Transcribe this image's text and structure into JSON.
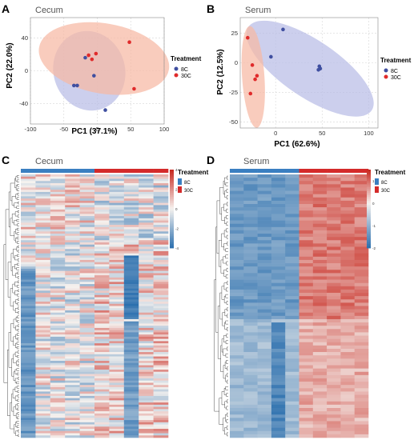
{
  "panels": {
    "A": {
      "letter": "A",
      "title": "Cecum"
    },
    "B": {
      "letter": "B",
      "title": "Serum"
    },
    "C": {
      "letter": "C",
      "title": "Cecum"
    },
    "D": {
      "letter": "D",
      "title": "Serum"
    }
  },
  "legend": {
    "title": "Treatment",
    "items": [
      "8C",
      "30C"
    ]
  },
  "colors": {
    "group_8C": "#3f4fa0",
    "group_30C": "#e02b2b",
    "ellipse_8C": "#b8bde6",
    "ellipse_30C": "#f6b9a3",
    "heat_low": "#2b6fae",
    "heat_mid": "#f5f2ef",
    "heat_high": "#c7271e",
    "bar_8C": "#3a7fc1",
    "bar_30C": "#d42a2a"
  },
  "chart_data": [
    {
      "panel": "A",
      "type": "scatter",
      "xlabel": "PC1 (37.1%)",
      "ylabel": "PC2 (22.0%)",
      "xlim": [
        -100,
        100
      ],
      "ylim": [
        -65,
        65
      ],
      "xticks": [
        -100,
        -50,
        0,
        50,
        100
      ],
      "yticks": [
        -40,
        0,
        40
      ],
      "grid": true,
      "legend_position": "right",
      "series": [
        {
          "name": "8C",
          "points": [
            [
              -18,
              16
            ],
            [
              -35,
              -18
            ],
            [
              -30,
              -18
            ],
            [
              -5,
              -6
            ],
            [
              12,
              -48
            ]
          ]
        },
        {
          "name": "30C",
          "points": [
            [
              -13,
              19
            ],
            [
              -8,
              14
            ],
            [
              -2,
              21
            ],
            [
              48,
              35
            ],
            [
              55,
              -22
            ]
          ]
        }
      ],
      "ellipses": [
        {
          "group": "8C",
          "cx": -12,
          "cy": 0,
          "rx": 50,
          "ry": 52,
          "angle": 110
        },
        {
          "group": "30C",
          "cx": 10,
          "cy": 15,
          "rx": 98,
          "ry": 43,
          "angle": -8
        }
      ]
    },
    {
      "panel": "B",
      "type": "scatter",
      "xlabel": "PC1 (62.6%)",
      "ylabel": "PC2 (12.5%)",
      "xlim": [
        -38,
        110
      ],
      "ylim": [
        -55,
        38
      ],
      "xticks": [
        0,
        50,
        100
      ],
      "yticks": [
        -50,
        -25,
        0,
        25
      ],
      "grid": true,
      "legend_position": "right",
      "series": [
        {
          "name": "8C",
          "points": [
            [
              8,
              28
            ],
            [
              -5,
              5
            ],
            [
              47,
              -3
            ],
            [
              48,
              -5
            ],
            [
              46,
              -6
            ]
          ]
        },
        {
          "name": "30C",
          "points": [
            [
              -30,
              21
            ],
            [
              -25,
              -2
            ],
            [
              -20,
              -11
            ],
            [
              -22,
              -14
            ],
            [
              -27,
              -26
            ]
          ]
        }
      ],
      "ellipses": [
        {
          "group": "8C",
          "cx": 37,
          "cy": -5,
          "rx": 75,
          "ry": 25,
          "angle": -28
        },
        {
          "group": "30C",
          "cx": -24,
          "cy": -12,
          "rx": 43,
          "ry": 12,
          "angle": 95
        }
      ]
    },
    {
      "panel": "C",
      "type": "heatmap",
      "columns": [
        "8C",
        "8C",
        "8C",
        "8C",
        "8C",
        "30C",
        "30C",
        "30C",
        "30C",
        "30C"
      ],
      "rows": 120,
      "color_scale": {
        "ticks": [
          4,
          2,
          0,
          -2,
          -4
        ],
        "min": -4,
        "max": 4
      },
      "dendrogram": "rows"
    },
    {
      "panel": "D",
      "type": "heatmap",
      "columns": [
        "8C",
        "8C",
        "8C",
        "8C",
        "8C",
        "30C",
        "30C",
        "30C",
        "30C",
        "30C"
      ],
      "rows": 80,
      "color_scale": {
        "ticks": [
          1,
          0,
          -1,
          -2
        ],
        "min": -2,
        "max": 1.5
      },
      "dendrogram": "rows"
    }
  ]
}
